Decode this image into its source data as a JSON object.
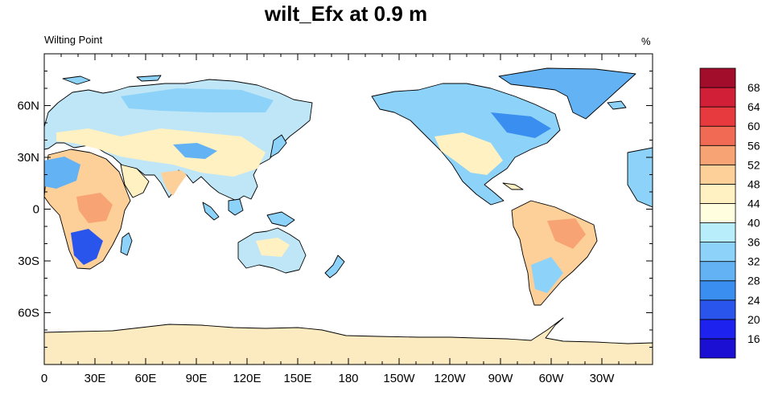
{
  "title": "wilt_Efx at 0.9 m",
  "left_string": "Wilting Point",
  "right_string": "%",
  "map": {
    "projection": "cylindrical-equidistant",
    "center_lon": 180,
    "lon_range": [
      0,
      360
    ],
    "lat_range": [
      -90,
      90
    ],
    "lon_ticks": [
      "0",
      "30E",
      "60E",
      "90E",
      "120E",
      "150E",
      "180",
      "150W",
      "120W",
      "90W",
      "60W",
      "30W"
    ],
    "lat_ticks": [
      "60N",
      "30N",
      "0",
      "30S",
      "60S"
    ],
    "ocean_color": "#ffffff",
    "coastline_color": "#000000"
  },
  "colorbar": {
    "labels": [
      "16",
      "20",
      "24",
      "28",
      "32",
      "36",
      "40",
      "44",
      "48",
      "52",
      "56",
      "60",
      "64",
      "68"
    ],
    "colors": [
      "#1a0fd2",
      "#1d22ee",
      "#2a55ec",
      "#3a8ef0",
      "#62b2f4",
      "#8dd2f8",
      "#b8eefb",
      "#ffffe0",
      "#fff1c1",
      "#fdd09a",
      "#f8a374",
      "#f06a54",
      "#e63a3e",
      "#d01f36",
      "#a20d2c"
    ]
  },
  "chart_data": {
    "type": "heatmap",
    "title": "wilt_Efx at 0.9 m",
    "subtitle": "Wilting Point",
    "units": "%",
    "x_ticks": [
      "0",
      "30E",
      "60E",
      "90E",
      "120E",
      "150E",
      "180",
      "150W",
      "120W",
      "90W",
      "60W",
      "30W"
    ],
    "y_ticks": [
      "60N",
      "30N",
      "0",
      "30S",
      "60S"
    ],
    "color_levels": [
      16,
      20,
      24,
      28,
      32,
      36,
      40,
      44,
      48,
      52,
      56,
      60,
      64,
      68
    ]
  }
}
